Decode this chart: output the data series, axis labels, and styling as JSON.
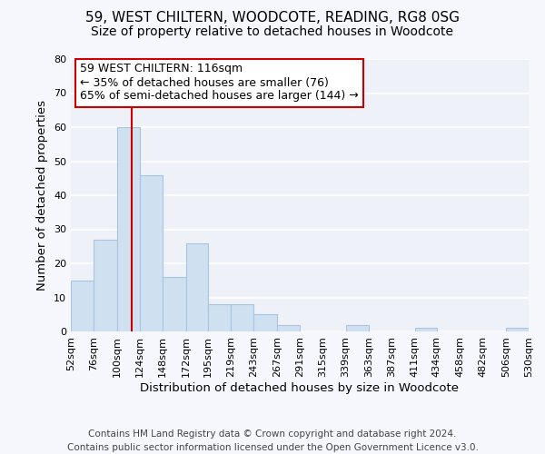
{
  "title": "59, WEST CHILTERN, WOODCOTE, READING, RG8 0SG",
  "subtitle": "Size of property relative to detached houses in Woodcote",
  "xlabel": "Distribution of detached houses by size in Woodcote",
  "ylabel": "Number of detached properties",
  "bar_color": "#cfe0f0",
  "bar_edgecolor": "#a8c4e0",
  "background_color": "#eef2f8",
  "grid_color": "#ffffff",
  "vline_x": 116,
  "vline_color": "#cc0000",
  "bin_edges": [
    52,
    76,
    100,
    124,
    148,
    172,
    195,
    219,
    243,
    267,
    291,
    315,
    339,
    363,
    387,
    411,
    434,
    458,
    482,
    506,
    530
  ],
  "bin_heights": [
    15,
    27,
    60,
    46,
    16,
    26,
    8,
    8,
    5,
    2,
    0,
    0,
    2,
    0,
    0,
    1,
    0,
    0,
    0,
    1
  ],
  "ylim": [
    0,
    80
  ],
  "yticks": [
    0,
    10,
    20,
    30,
    40,
    50,
    60,
    70,
    80
  ],
  "xtick_labels": [
    "52sqm",
    "76sqm",
    "100sqm",
    "124sqm",
    "148sqm",
    "172sqm",
    "195sqm",
    "219sqm",
    "243sqm",
    "267sqm",
    "291sqm",
    "315sqm",
    "339sqm",
    "363sqm",
    "387sqm",
    "411sqm",
    "434sqm",
    "458sqm",
    "482sqm",
    "506sqm",
    "530sqm"
  ],
  "annotation_title": "59 WEST CHILTERN: 116sqm",
  "annotation_line1": "← 35% of detached houses are smaller (76)",
  "annotation_line2": "65% of semi-detached houses are larger (144) →",
  "annotation_box_color": "#ffffff",
  "annotation_box_edgecolor": "#cc0000",
  "footer_line1": "Contains HM Land Registry data © Crown copyright and database right 2024.",
  "footer_line2": "Contains public sector information licensed under the Open Government Licence v3.0.",
  "title_fontsize": 11,
  "subtitle_fontsize": 10,
  "axis_label_fontsize": 9.5,
  "tick_fontsize": 8,
  "annotation_fontsize": 9,
  "footer_fontsize": 7.5
}
